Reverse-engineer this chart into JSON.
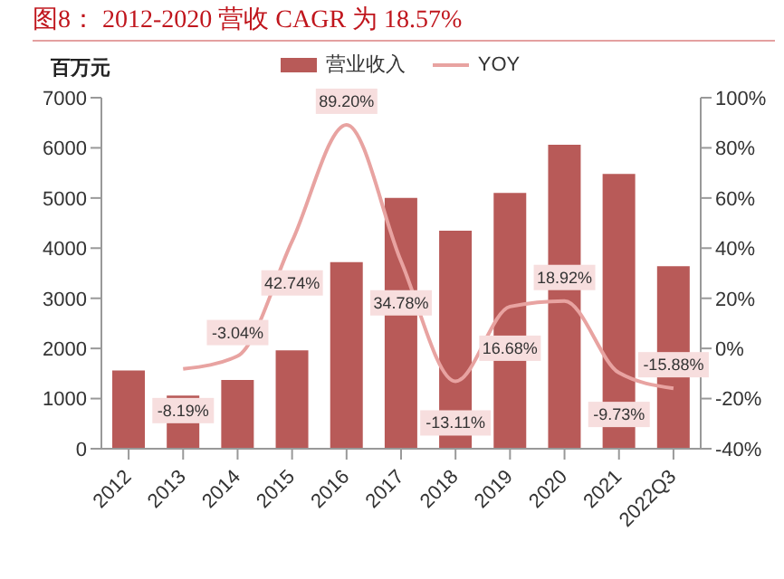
{
  "chart_data": {
    "type": "bar",
    "title": "图8：  2012-2020 营收 CAGR 为 18.57%",
    "ylabel": "百万元",
    "categories": [
      "2012",
      "2013",
      "2014",
      "2015",
      "2016",
      "2017",
      "2018",
      "2019",
      "2020",
      "2021",
      "2022Q3"
    ],
    "series": [
      {
        "name": "营业收入",
        "color": "#b85a58",
        "values": [
          1560,
          1060,
          1370,
          1960,
          3720,
          5000,
          4350,
          5100,
          6060,
          5480,
          3640
        ]
      },
      {
        "name": "YOY",
        "type": "line",
        "axis": "y2",
        "color": "#e8a3a1",
        "marker": "none",
        "values": [
          null,
          -8.19,
          -3.04,
          42.74,
          89.2,
          34.78,
          -13.11,
          16.68,
          18.92,
          -9.73,
          -15.88
        ],
        "value_labels": [
          null,
          "-8.19%",
          "-3.04%",
          "42.74%",
          "89.20%",
          "34.78%",
          "-13.11%",
          "16.68%",
          "18.92%",
          "-9.73%",
          "-15.88%"
        ]
      }
    ],
    "ylim": [
      0,
      7000
    ],
    "yticks": [
      0,
      1000,
      2000,
      3000,
      4000,
      5000,
      6000,
      7000
    ],
    "y2lim": [
      -40,
      100
    ],
    "y2ticks": [
      {
        "value": -40,
        "label": "-40%"
      },
      {
        "value": -20,
        "label": "-20%"
      },
      {
        "value": 0,
        "label": "0%"
      },
      {
        "value": 20,
        "label": "20%"
      },
      {
        "value": 40,
        "label": "40%"
      },
      {
        "value": 60,
        "label": "60%"
      },
      {
        "value": 80,
        "label": "80%"
      },
      {
        "value": 100,
        "label": "100%"
      }
    ],
    "grid": false,
    "legend": "top"
  }
}
